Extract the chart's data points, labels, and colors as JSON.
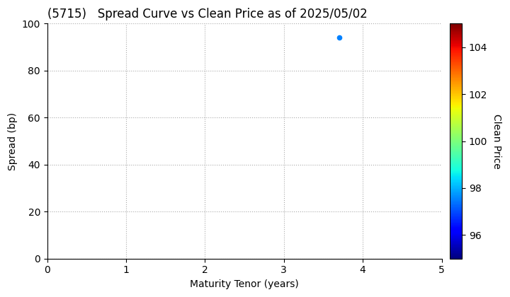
{
  "title": "(5715)   Spread Curve vs Clean Price as of 2025/05/02",
  "xlabel": "Maturity Tenor (years)",
  "ylabel": "Spread (bp)",
  "colorbar_label": "Clean Price",
  "xlim": [
    0,
    5
  ],
  "ylim": [
    0,
    100
  ],
  "xticks": [
    0,
    1,
    2,
    3,
    4,
    5
  ],
  "yticks": [
    0,
    20,
    40,
    60,
    80,
    100
  ],
  "clim": [
    95,
    105
  ],
  "cticks": [
    96,
    98,
    100,
    102,
    104
  ],
  "scatter_x": [
    3.7
  ],
  "scatter_y": [
    94
  ],
  "scatter_price": [
    97.5
  ],
  "background_color": "#ffffff",
  "grid_color": "#aaaaaa",
  "title_fontsize": 12,
  "axis_fontsize": 10,
  "tick_fontsize": 10,
  "colorbar_fontsize": 10
}
